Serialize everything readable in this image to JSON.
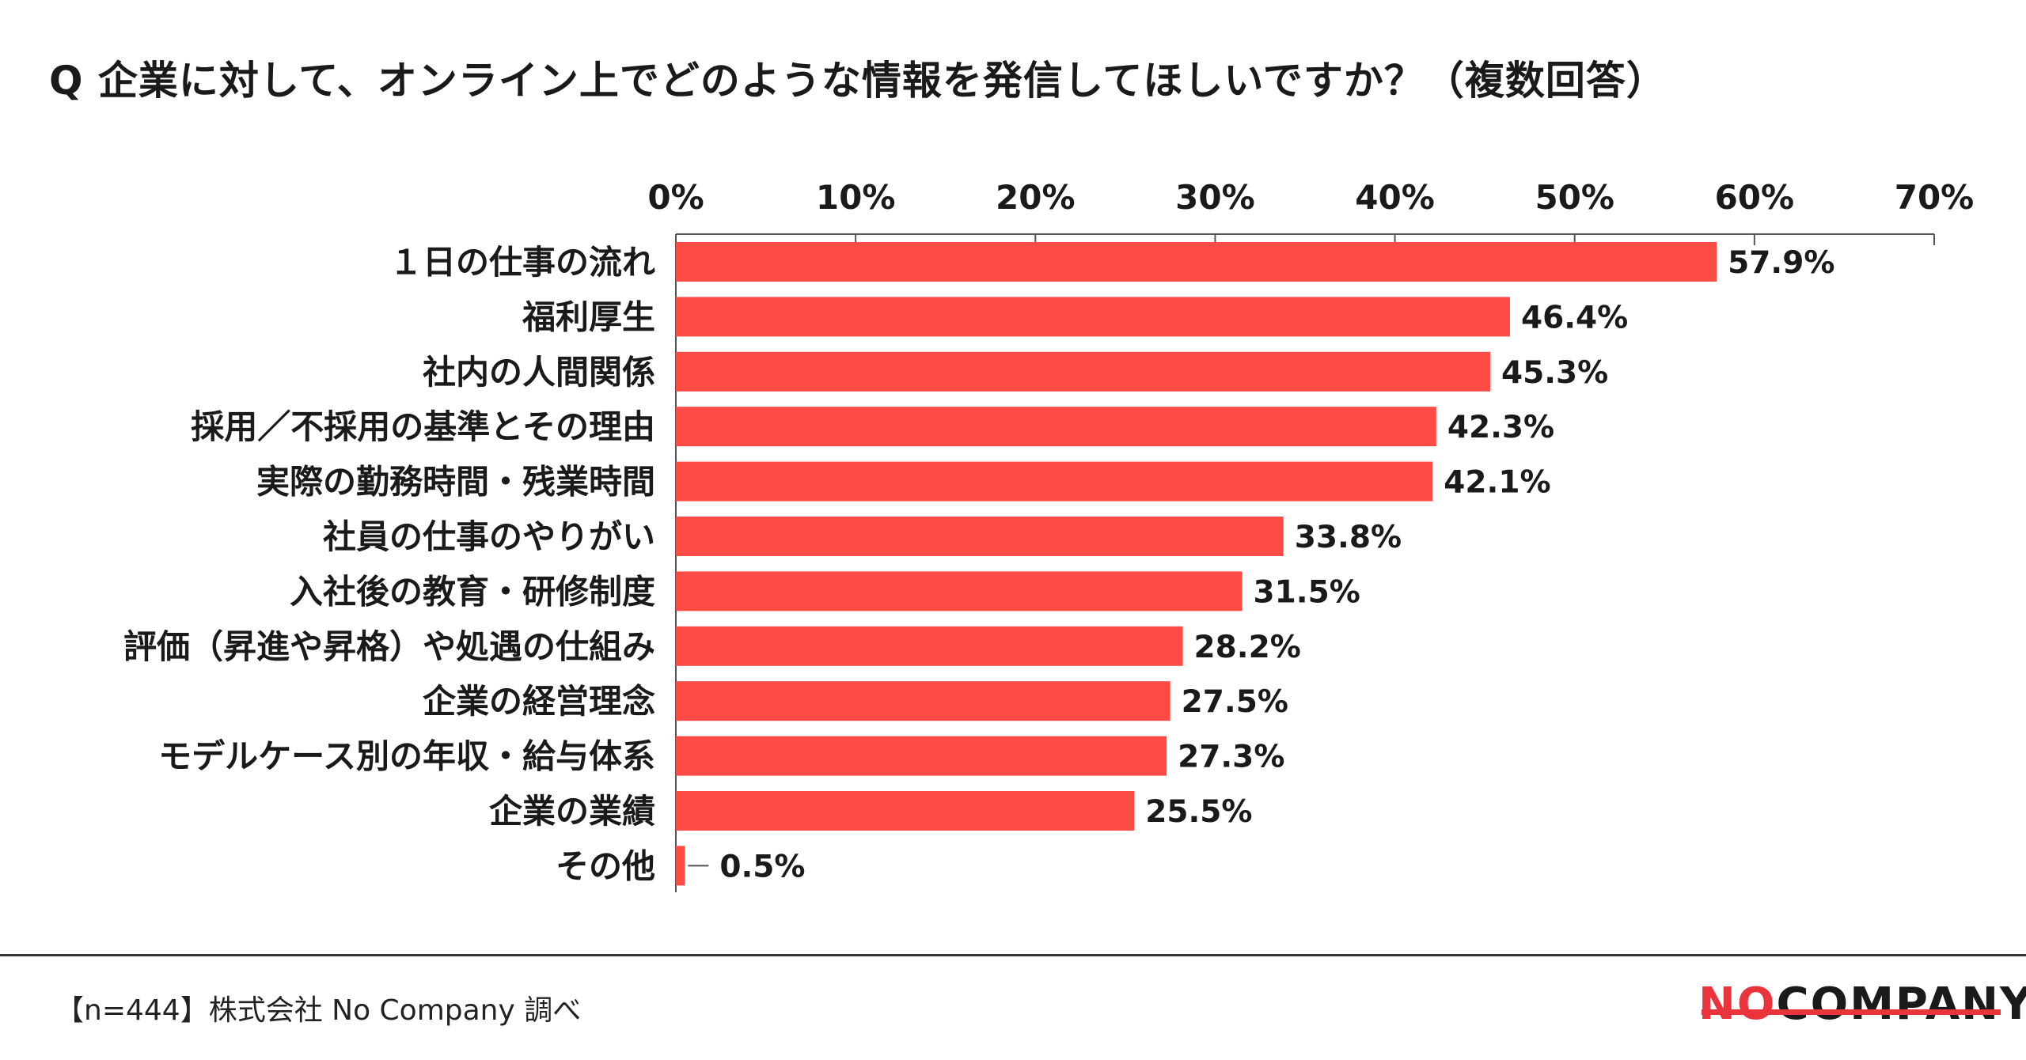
{
  "title": "Q 企業に対して、オンライン上でどのような情報を発信してほしいですか？（複数回答）",
  "footnote": "【n=444】株式会社 No Company 調べ",
  "logo": {
    "part1": "NO",
    "part2": "COMPANY"
  },
  "colors": {
    "bar": "#ff4b46",
    "logo_accent": "#e8343a"
  },
  "chart_data": {
    "type": "bar",
    "orientation": "horizontal",
    "categories": [
      "１日の仕事の流れ",
      "福利厚生",
      "社内の人間関係",
      "採用／不採用の基準とその理由",
      "実際の勤務時間・残業時間",
      "社員の仕事のやりがい",
      "入社後の教育・研修制度",
      "評価（昇進や昇格）や処遇の仕組み",
      "企業の経営理念",
      "モデルケース別の年収・給与体系",
      "企業の業績",
      "その他"
    ],
    "values": [
      57.9,
      46.4,
      45.3,
      42.3,
      42.1,
      33.8,
      31.5,
      28.2,
      27.5,
      27.3,
      25.5,
      0.5
    ],
    "value_labels": [
      "57.9%",
      "46.4%",
      "45.3%",
      "42.3%",
      "42.1%",
      "33.8%",
      "31.5%",
      "28.2%",
      "27.5%",
      "27.3%",
      "25.5%",
      "0.5%"
    ],
    "xlim": [
      0,
      70
    ],
    "xticks": [
      0,
      10,
      20,
      30,
      40,
      50,
      60,
      70
    ],
    "xtick_labels": [
      "0%",
      "10%",
      "20%",
      "30%",
      "40%",
      "50%",
      "60%",
      "70%"
    ],
    "axis_position": "top",
    "grid": false,
    "legend": "none"
  }
}
